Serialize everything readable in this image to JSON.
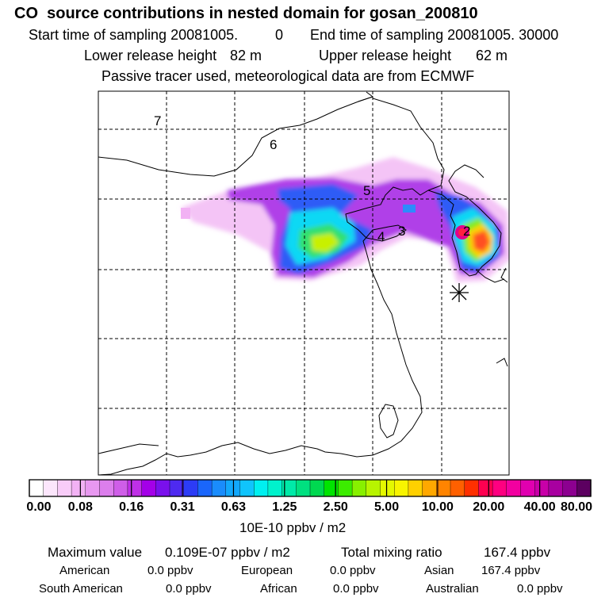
{
  "header": {
    "title": "CO  source contributions in nested domain for gosan_200810",
    "start_label": "Start time of sampling 20081005.",
    "start_hms": "0",
    "end_label": "End time of sampling 20081005. 30000",
    "lower_label": "Lower release height",
    "lower_value": "82 m",
    "upper_label": "Upper release height",
    "upper_value": "62 m",
    "tracer_line": "Passive tracer used, meteorological data are from ECMWF"
  },
  "map": {
    "region_labels": [
      "7",
      "6",
      "5",
      "4",
      "3",
      "2"
    ],
    "receptor_marker": "gosan-receptor"
  },
  "colorbar": {
    "tick_labels": [
      "0.00",
      "0.08",
      "0.16",
      "0.31",
      "0.63",
      "1.25",
      "2.50",
      "5.00",
      "10.00",
      "20.00",
      "40.00",
      "80.00"
    ],
    "colors": [
      "#ffffff",
      "#fce6fc",
      "#f8ccf8",
      "#f2b2f4",
      "#e898f0",
      "#dc7eec",
      "#cf5ee8",
      "#bf30e6",
      "#a400e8",
      "#7a10ec",
      "#4e2af0",
      "#2c3cf6",
      "#1a66fb",
      "#1a8cfc",
      "#12a8fc",
      "#10c4fc",
      "#00f0f0",
      "#00f2cc",
      "#00eaa8",
      "#00e080",
      "#00d850",
      "#00e400",
      "#3cec00",
      "#88f000",
      "#b8f400",
      "#e4f800",
      "#f8f400",
      "#ffd000",
      "#ffa800",
      "#ff8400",
      "#ff6000",
      "#ff3000",
      "#ff0050",
      "#ff0080",
      "#f200a0",
      "#e000b0",
      "#c800a8",
      "#a800a0",
      "#8c0090",
      "#5c0060"
    ],
    "unit": "10E-10 ppbv / m2"
  },
  "footer": {
    "max_label": "Maximum value",
    "max_value": "0.109E-07 ppbv / m2",
    "total_label": "Total mixing ratio",
    "total_value": "167.4 ppbv",
    "american_label": "American",
    "american_value": "0.0 ppbv",
    "european_label": "European",
    "european_value": "0.0 ppbv",
    "asian_label": "Asian",
    "asian_value": "167.4 ppbv",
    "south_american_label": "South American",
    "south_american_value": "0.0 ppbv",
    "african_label": "African",
    "african_value": "0.0 ppbv",
    "australian_label": "Australian",
    "australian_value": "0.0 ppbv"
  }
}
